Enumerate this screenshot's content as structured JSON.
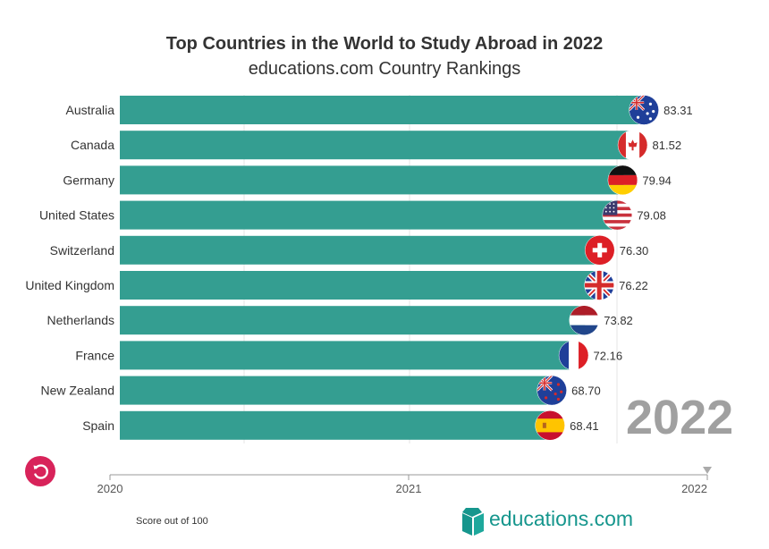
{
  "header": {
    "title": "Top Countries in the World to Study Abroad in 2022",
    "subtitle": "educations.com Country Rankings"
  },
  "current_year_label": "2022",
  "footnote": "Score out of 100",
  "brand": {
    "name": "educations.com",
    "color": "#16968d"
  },
  "colors": {
    "bar": "#349e91",
    "replay": "#d8235a",
    "axis": "#999999",
    "year": "#a0a0a0"
  },
  "chart_data": {
    "type": "bar",
    "orientation": "horizontal",
    "title": "Top Countries in the World to Study Abroad in 2022",
    "subtitle": "educations.com Country Rankings",
    "categories": [
      "Australia",
      "Canada",
      "Germany",
      "United States",
      "Switzerland",
      "United Kingdom",
      "Netherlands",
      "France",
      "New Zealand",
      "Spain"
    ],
    "values": [
      83.31,
      81.52,
      79.94,
      79.08,
      76.3,
      76.22,
      73.82,
      72.16,
      68.7,
      68.41
    ],
    "value_labels": [
      "83.31",
      "81.52",
      "79.94",
      "79.08",
      "76.30",
      "76.22",
      "73.82",
      "72.16",
      "68.70",
      "68.41"
    ],
    "flags": [
      "australia-flag-icon",
      "canada-flag-icon",
      "germany-flag-icon",
      "united-states-flag-icon",
      "switzerland-flag-icon",
      "united-kingdom-flag-icon",
      "netherlands-flag-icon",
      "france-flag-icon",
      "new-zealand-flag-icon",
      "spain-flag-icon"
    ],
    "xlim": [
      0,
      84
    ],
    "xlabel": "Score out of 100",
    "ylabel": "",
    "timeline": {
      "ticks": [
        "2020",
        "2021",
        "2022"
      ],
      "current": "2022"
    },
    "grid": true
  }
}
